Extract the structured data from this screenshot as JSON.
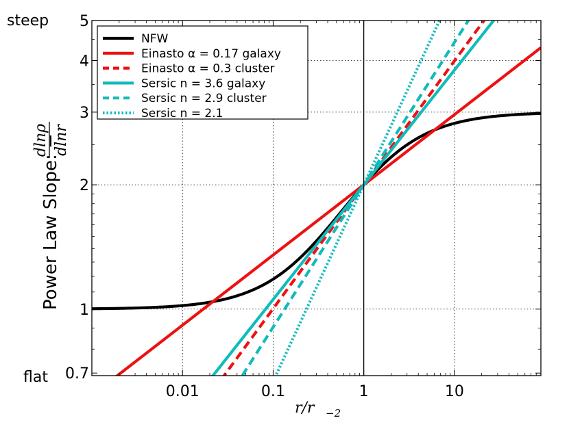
{
  "chart_data": {
    "type": "line",
    "title": "",
    "xlabel": "r/r_{-2}",
    "xlabel_main": "r/r",
    "xlabel_sub": "−2",
    "ylabel": "Power Law Slope: −",
    "ylabel_frac_num": "dlnρ",
    "ylabel_frac_den": "dlnr",
    "x_scale": "log",
    "y_scale": "log",
    "xlim": [
      0.001,
      90
    ],
    "ylim": [
      0.69,
      5
    ],
    "x_ticks": [
      {
        "value": 0.01,
        "label": "0.01"
      },
      {
        "value": 0.1,
        "label": "0.1"
      },
      {
        "value": 1,
        "label": "1"
      },
      {
        "value": 10,
        "label": "10"
      }
    ],
    "y_ticks": [
      {
        "value": 0.7,
        "label": "0.7"
      },
      {
        "value": 1,
        "label": "1"
      },
      {
        "value": 2,
        "label": "2"
      },
      {
        "value": 3,
        "label": "3"
      },
      {
        "value": 4,
        "label": "4"
      },
      {
        "value": 5,
        "label": "5"
      }
    ],
    "y_side_labels": {
      "top": "steep",
      "bottom": "flat"
    },
    "vertical_line_x": 1,
    "grid": true,
    "legend_position": "top-left",
    "series": [
      {
        "name": "NFW",
        "color": "#000000",
        "dash": "solid",
        "model": "nfw"
      },
      {
        "name": "Einasto α = 0.17 galaxy",
        "color": "#ee1111",
        "dash": "solid",
        "model": "einasto",
        "alpha": 0.17
      },
      {
        "name": "Einasto α = 0.3 cluster",
        "color": "#ee1111",
        "dash": "dashed",
        "model": "einasto",
        "alpha": 0.3
      },
      {
        "name": "Sersic n = 3.6 galaxy",
        "color": "#11bbbb",
        "dash": "solid",
        "model": "sersic",
        "n": 3.6
      },
      {
        "name": "Sersic n = 2.9 cluster",
        "color": "#11bbbb",
        "dash": "dashed",
        "model": "sersic",
        "n": 2.9
      },
      {
        "name": "Sersic n = 2.1",
        "color": "#11bbbb",
        "dash": "dotted",
        "model": "sersic",
        "n": 2.1
      }
    ]
  }
}
